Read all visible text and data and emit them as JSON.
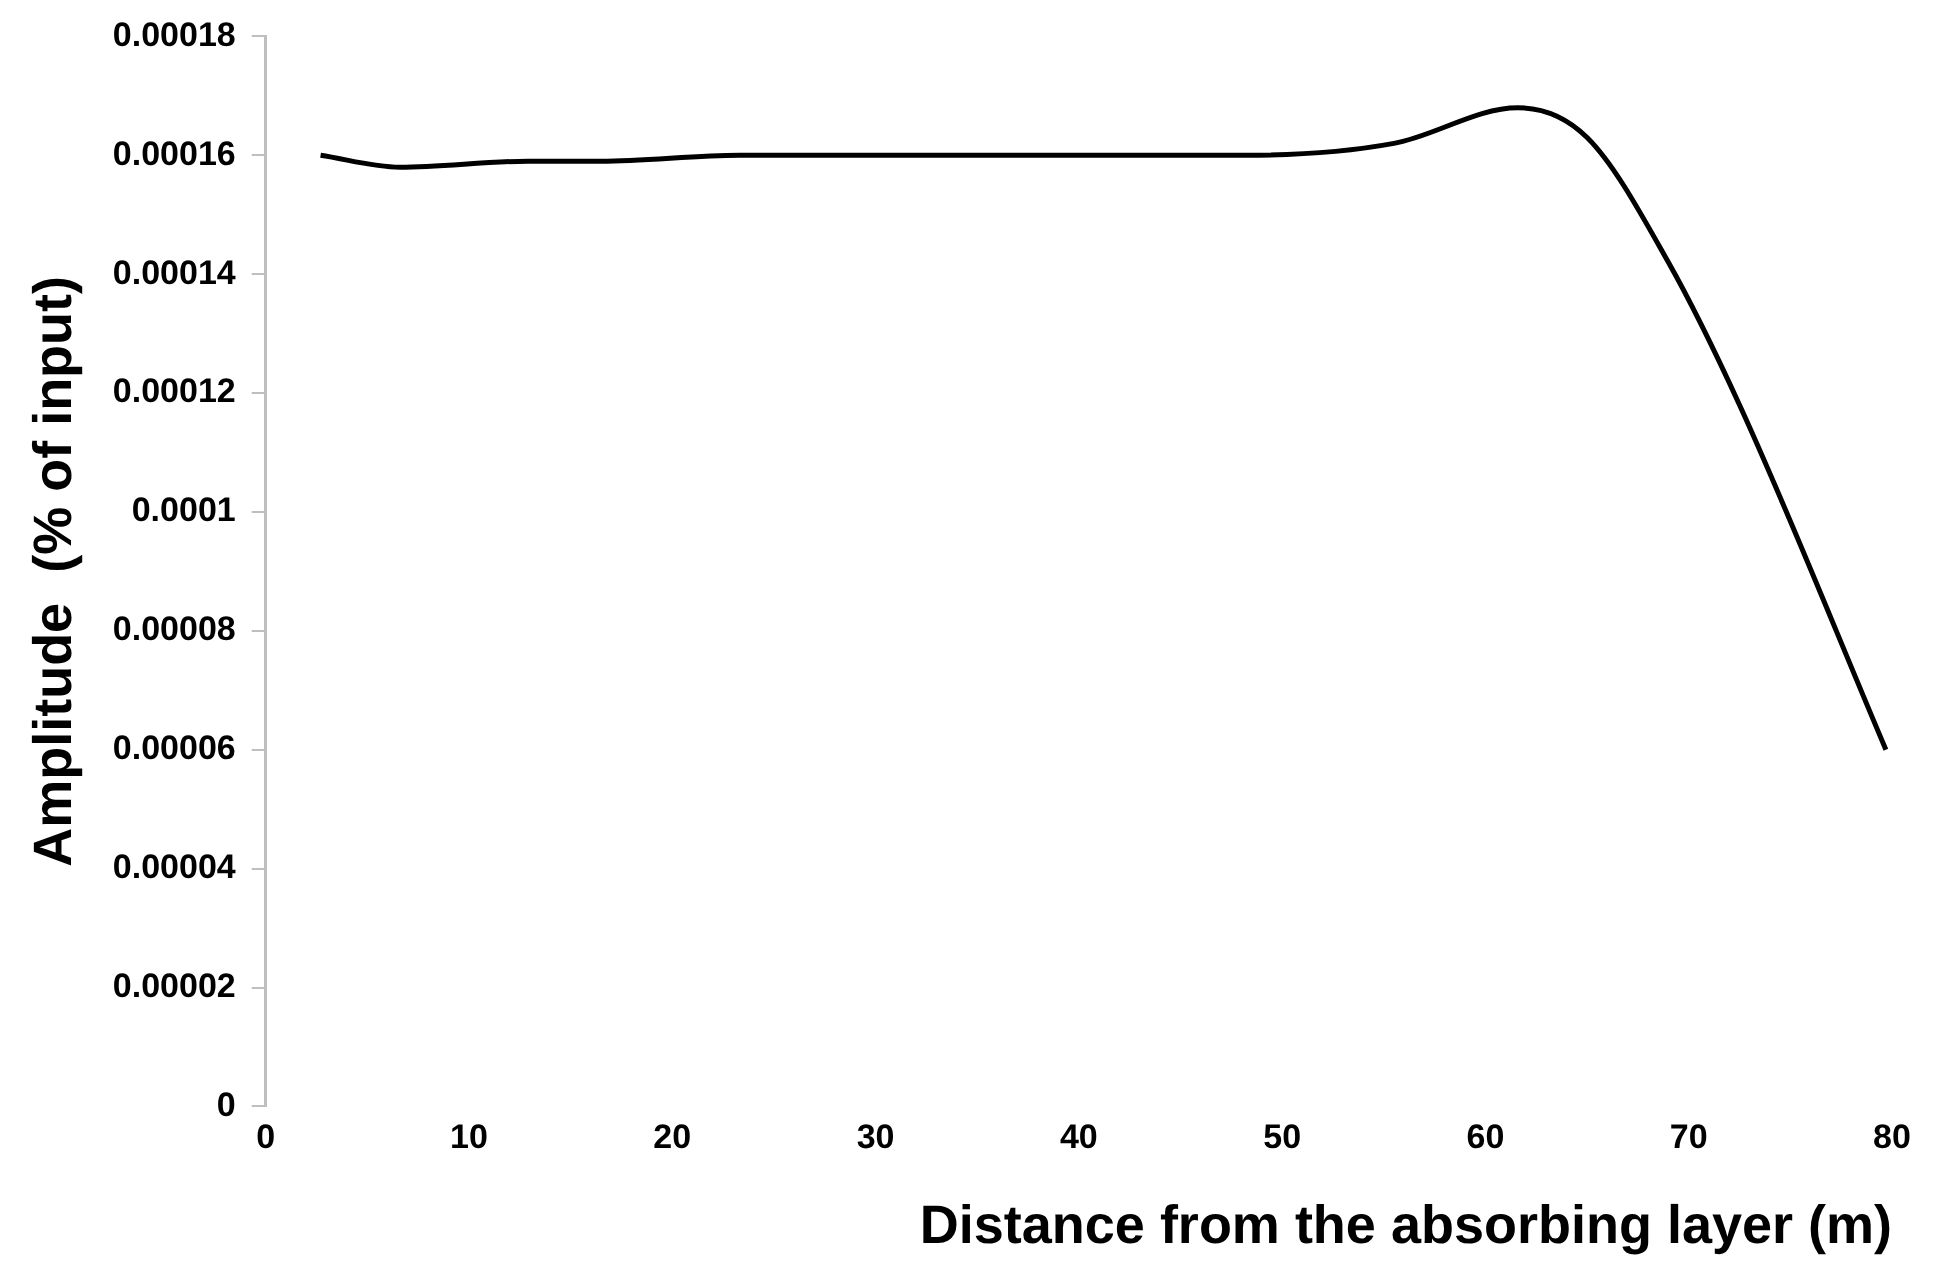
{
  "chart_data": {
    "type": "line",
    "xlabel": "Distance from the absorbing layer (m)",
    "ylabel": "Amplitude  (% of input)",
    "x": [
      2.7,
      6.6,
      12.9,
      16.5,
      23.3,
      48.2,
      55.5,
      61.6,
      65,
      69,
      72.5,
      79.7
    ],
    "series": [
      {
        "color": "#000000",
        "values": [
          0.00016,
          0.000158,
          0.000159,
          0.000159,
          0.00016,
          0.00016,
          0.000162,
          0.000168,
          0.000163,
          0.000142,
          0.000118,
          6e-05
        ]
      }
    ],
    "xlim": [
      0,
      80
    ],
    "xticks": [
      0,
      10,
      20,
      30,
      40,
      50,
      60,
      70,
      80
    ],
    "ylim": [
      0,
      0.00018
    ],
    "yticks": [
      {
        "value": 0,
        "label": "0"
      },
      {
        "value": 2e-05,
        "label": "0.00002"
      },
      {
        "value": 4e-05,
        "label": "0.00004"
      },
      {
        "value": 6e-05,
        "label": "0.00006"
      },
      {
        "value": 8e-05,
        "label": "0.00008"
      },
      {
        "value": 0.0001,
        "label": "0.0001"
      },
      {
        "value": 0.00012,
        "label": "0.00012"
      },
      {
        "value": 0.00014,
        "label": "0.00014"
      },
      {
        "value": 0.00016,
        "label": "0.00016"
      },
      {
        "value": 0.00018,
        "label": "0.00018"
      }
    ],
    "grid": false,
    "legend": false,
    "marker": "none",
    "line_style": "solid"
  }
}
